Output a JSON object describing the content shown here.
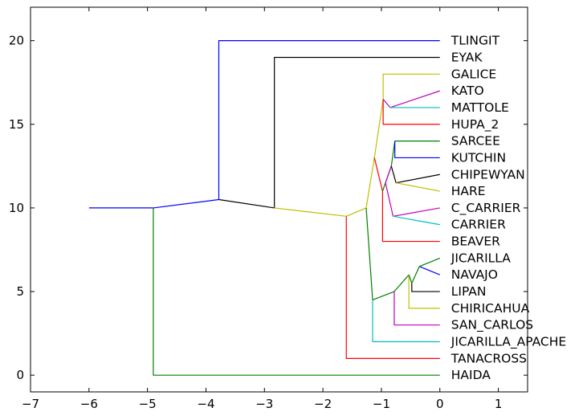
{
  "chart_data": {
    "type": "line",
    "title": "",
    "xlabel": "",
    "ylabel": "",
    "xlim": [
      -7,
      1.5
    ],
    "ylim": [
      -1,
      22
    ],
    "xticks": [
      -7,
      -6,
      -5,
      -4,
      -3,
      -2,
      -1,
      0,
      1
    ],
    "yticks": [
      0,
      5,
      10,
      15,
      20
    ],
    "xtick_labels": [
      "−7",
      "−6",
      "−5",
      "−4",
      "−3",
      "−2",
      "−1",
      "0",
      "1"
    ],
    "ytick_labels": [
      "0",
      "5",
      "10",
      "15",
      "20"
    ],
    "grid": false,
    "leaves": [
      {
        "label": "TLINGIT",
        "y": 20
      },
      {
        "label": "EYAK",
        "y": 19
      },
      {
        "label": "GALICE",
        "y": 18
      },
      {
        "label": "KATO",
        "y": 17
      },
      {
        "label": "MATTOLE",
        "y": 16
      },
      {
        "label": "HUPA_2",
        "y": 15
      },
      {
        "label": "SARCEE",
        "y": 14
      },
      {
        "label": "KUTCHIN",
        "y": 13
      },
      {
        "label": "CHIPEWYAN",
        "y": 12
      },
      {
        "label": "HARE",
        "y": 11
      },
      {
        "label": "C_CARRIER",
        "y": 10
      },
      {
        "label": "CARRIER",
        "y": 9
      },
      {
        "label": "BEAVER",
        "y": 8
      },
      {
        "label": "JICARILLA",
        "y": 7
      },
      {
        "label": "NAVAJO",
        "y": 6
      },
      {
        "label": "LIPAN",
        "y": 5
      },
      {
        "label": "CHIRICAHUA",
        "y": 4
      },
      {
        "label": "SAN_CARLOS",
        "y": 3
      },
      {
        "label": "JICARILLA_APACHE",
        "y": 2
      },
      {
        "label": "TANACROSS",
        "y": 1
      },
      {
        "label": "HAIDA",
        "y": 0
      }
    ],
    "series": [
      {
        "color": "#0000ff",
        "x": [
          -6.0,
          -4.9
        ],
        "y": [
          10.0,
          10.0
        ]
      },
      {
        "color": "#008000",
        "x": [
          -4.9,
          -4.9,
          0.0
        ],
        "y": [
          10.0,
          0.0,
          0.0
        ]
      },
      {
        "color": "#0000ff",
        "x": [
          -4.9,
          -3.78
        ],
        "y": [
          10.0,
          10.5
        ]
      },
      {
        "color": "#0000ff",
        "x": [
          -3.78,
          -3.78,
          0.0
        ],
        "y": [
          10.5,
          20.0,
          20.0
        ]
      },
      {
        "color": "#000000",
        "x": [
          -3.78,
          -2.83
        ],
        "y": [
          10.5,
          10.0
        ]
      },
      {
        "color": "#000000",
        "x": [
          -2.83,
          -2.83,
          0.0
        ],
        "y": [
          10.0,
          19.0,
          19.0
        ]
      },
      {
        "color": "#bfbf00",
        "x": [
          -2.83,
          -1.6
        ],
        "y": [
          10.0,
          9.5
        ]
      },
      {
        "color": "#ff0000",
        "x": [
          -1.6,
          -1.6,
          0.0
        ],
        "y": [
          9.5,
          1.0,
          1.0
        ]
      },
      {
        "color": "#bfbf00",
        "x": [
          -1.6,
          -1.26
        ],
        "y": [
          9.5,
          10.0
        ]
      },
      {
        "color": "#008000",
        "x": [
          -1.26,
          -1.15
        ],
        "y": [
          10.0,
          4.5
        ]
      },
      {
        "color": "#00bfbf",
        "x": [
          -1.15,
          -1.15,
          0.0
        ],
        "y": [
          4.5,
          2.0,
          2.0
        ]
      },
      {
        "color": "#008000",
        "x": [
          -1.15,
          -0.78
        ],
        "y": [
          4.5,
          5.0
        ]
      },
      {
        "color": "#bf00bf",
        "x": [
          -0.78,
          -0.78,
          0.0
        ],
        "y": [
          5.0,
          3.0,
          3.0
        ]
      },
      {
        "color": "#008000",
        "x": [
          -0.78,
          -0.53
        ],
        "y": [
          5.0,
          6.0
        ]
      },
      {
        "color": "#bfbf00",
        "x": [
          -0.53,
          -0.53,
          0.0
        ],
        "y": [
          6.0,
          4.0,
          4.0
        ]
      },
      {
        "color": "#008000",
        "x": [
          -0.53,
          -0.48
        ],
        "y": [
          6.0,
          5.5
        ]
      },
      {
        "color": "#000000",
        "x": [
          -0.48,
          -0.48,
          0.0
        ],
        "y": [
          5.5,
          5.0,
          5.0
        ]
      },
      {
        "color": "#008000",
        "x": [
          -0.48,
          -0.35
        ],
        "y": [
          5.5,
          6.5
        ]
      },
      {
        "color": "#0000ff",
        "x": [
          -0.35,
          0.0
        ],
        "y": [
          6.5,
          6.0
        ]
      },
      {
        "color": "#008000",
        "x": [
          -0.35,
          0.0
        ],
        "y": [
          6.5,
          7.0
        ]
      },
      {
        "color": "#bfbf00",
        "x": [
          -1.26,
          -1.12
        ],
        "y": [
          10.0,
          13.0
        ]
      },
      {
        "color": "#bfbf00",
        "x": [
          -1.12,
          -0.97
        ],
        "y": [
          13.0,
          16.5
        ]
      },
      {
        "color": "#bfbf00",
        "x": [
          -0.97,
          -0.97,
          0.0
        ],
        "y": [
          16.5,
          18.0,
          18.0
        ]
      },
      {
        "color": "#ff0000",
        "x": [
          -0.97,
          -0.97,
          0.0
        ],
        "y": [
          16.5,
          15.0,
          15.0
        ]
      },
      {
        "color": "#bf00bf",
        "x": [
          -0.97,
          -0.85
        ],
        "y": [
          16.5,
          16.0
        ]
      },
      {
        "color": "#bf00bf",
        "x": [
          -0.85,
          0.0
        ],
        "y": [
          16.0,
          17.0
        ]
      },
      {
        "color": "#00bfbf",
        "x": [
          -0.85,
          0.0
        ],
        "y": [
          16.0,
          16.0
        ]
      },
      {
        "color": "#ff0000",
        "x": [
          -1.12,
          -0.98
        ],
        "y": [
          13.0,
          11.0
        ]
      },
      {
        "color": "#ff0000",
        "x": [
          -0.98,
          -0.98,
          0.0
        ],
        "y": [
          11.0,
          8.0,
          8.0
        ]
      },
      {
        "color": "#008000",
        "x": [
          -0.98,
          -0.83
        ],
        "y": [
          11.0,
          12.5
        ]
      },
      {
        "color": "#bf00bf",
        "x": [
          -0.83,
          -0.93
        ],
        "y": [
          12.5,
          11.5
        ]
      },
      {
        "color": "#bf00bf",
        "x": [
          -0.93,
          -0.8
        ],
        "y": [
          11.5,
          9.5
        ]
      },
      {
        "color": "#bf00bf",
        "x": [
          -0.8,
          0.0
        ],
        "y": [
          9.5,
          10.0
        ]
      },
      {
        "color": "#00bfbf",
        "x": [
          -0.8,
          0.0
        ],
        "y": [
          9.5,
          9.0
        ]
      },
      {
        "color": "#000000",
        "x": [
          -0.83,
          -0.75
        ],
        "y": [
          12.5,
          11.5
        ]
      },
      {
        "color": "#000000",
        "x": [
          -0.75,
          0.0
        ],
        "y": [
          11.5,
          12.0
        ]
      },
      {
        "color": "#bfbf00",
        "x": [
          -0.75,
          0.0
        ],
        "y": [
          11.5,
          11.0
        ]
      },
      {
        "color": "#008000",
        "x": [
          -0.83,
          -0.77
        ],
        "y": [
          12.5,
          14.0
        ]
      },
      {
        "color": "#008000",
        "x": [
          -0.77,
          0.0
        ],
        "y": [
          14.0,
          14.0
        ]
      },
      {
        "color": "#0000ff",
        "x": [
          -0.77,
          -0.77,
          0.0
        ],
        "y": [
          14.0,
          13.0,
          13.0
        ]
      }
    ]
  }
}
